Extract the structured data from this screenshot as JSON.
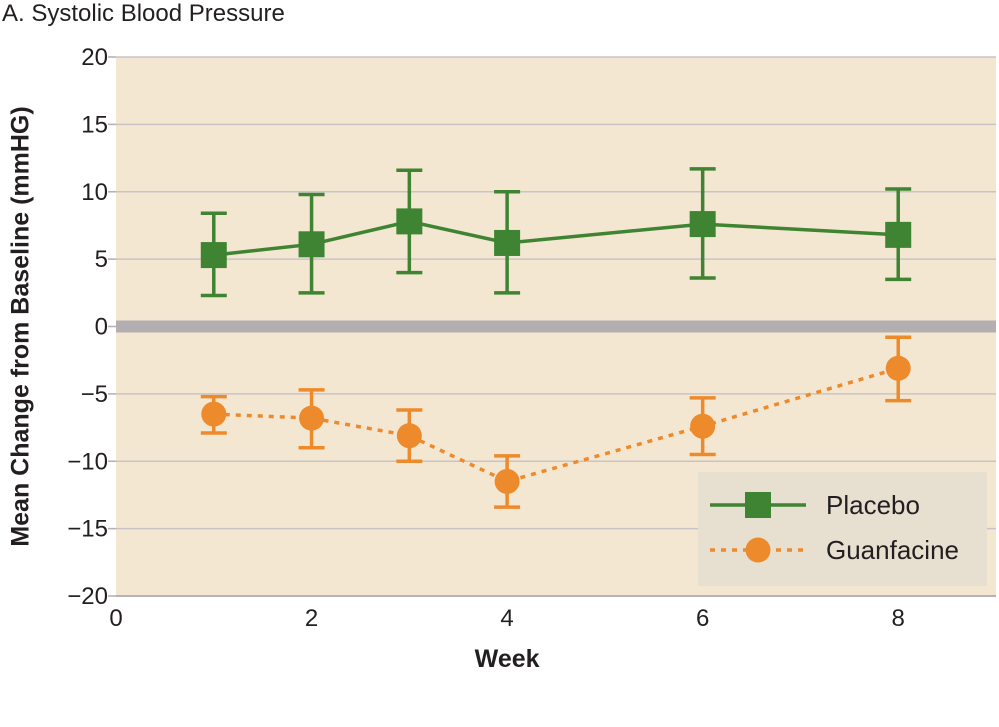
{
  "chart_data": {
    "type": "line",
    "title": "A. Systolic Blood Pressure",
    "xlabel": "Week",
    "ylabel": "Mean Change from Baseline (mmHG)",
    "xlim": [
      0,
      9
    ],
    "ylim": [
      -20,
      20
    ],
    "x_ticks": [
      0,
      2,
      4,
      6,
      8
    ],
    "y_ticks": [
      20,
      15,
      10,
      5,
      0,
      -5,
      -10,
      -15,
      -20
    ],
    "y_tick_labels": [
      "20",
      "15",
      "10",
      "5",
      "0",
      "−5",
      "−10",
      "−15",
      "−20"
    ],
    "grid": true,
    "legend_position": "bottom-right",
    "colors": {
      "plot_background": "#f4e7d2",
      "gridline": "#c9c3c8",
      "zero_line": "#b3aeb0",
      "legend_background": "#e7dfcf"
    },
    "series": [
      {
        "name": "Placebo",
        "marker": "square",
        "line_style": "solid",
        "color": "#3e8432",
        "x": [
          1,
          2,
          3,
          4,
          6,
          8
        ],
        "y": [
          5.3,
          6.1,
          7.8,
          6.2,
          7.6,
          6.8
        ],
        "error_low": [
          2.3,
          2.5,
          4.0,
          2.5,
          3.6,
          3.5
        ],
        "error_high": [
          8.4,
          9.8,
          11.6,
          10.0,
          11.7,
          10.2
        ]
      },
      {
        "name": "Guanfacine",
        "marker": "circle",
        "line_style": "dotted",
        "color": "#ed8a2c",
        "x": [
          1,
          2,
          3,
          4,
          6,
          8
        ],
        "y": [
          -6.5,
          -6.8,
          -8.1,
          -11.5,
          -7.4,
          -3.1
        ],
        "error_low": [
          -7.9,
          -9.0,
          -10.0,
          -13.4,
          -9.5,
          -5.5
        ],
        "error_high": [
          -5.2,
          -4.7,
          -6.2,
          -9.6,
          -5.3,
          -0.8
        ]
      }
    ]
  }
}
